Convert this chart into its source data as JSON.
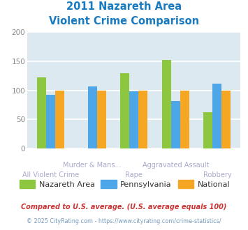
{
  "title_line1": "2011 Nazareth Area",
  "title_line2": "Violent Crime Comparison",
  "title_color": "#1a7abf",
  "categories": [
    "All Violent Crime",
    "Murder & Mans...",
    "Rape",
    "Aggravated Assault",
    "Robbery"
  ],
  "series": {
    "Nazareth Area": [
      122,
      0,
      129,
      152,
      62
    ],
    "Pennsylvania": [
      92,
      107,
      98,
      81,
      112
    ],
    "National": [
      100,
      100,
      100,
      100,
      100
    ]
  },
  "colors": {
    "Nazareth Area": "#8dc63f",
    "Pennsylvania": "#4da6e8",
    "National": "#f5a623"
  },
  "ylim": [
    0,
    200
  ],
  "yticks": [
    0,
    50,
    100,
    150,
    200
  ],
  "background_color": "#dce9f0",
  "grid_color": "#ffffff",
  "bar_width": 0.22,
  "group_positions": [
    0,
    1,
    2,
    3,
    4
  ],
  "xlabel_color": "#aaaacc",
  "xlabel_fontsize": 7.0,
  "tick_label_color": "#888888",
  "legend_labels": [
    "Nazareth Area",
    "Pennsylvania",
    "National"
  ],
  "footnote1": "Compared to U.S. average. (U.S. average equals 100)",
  "footnote2": "© 2025 CityRating.com - https://www.cityrating.com/crime-statistics/",
  "footnote1_color": "#cc3333",
  "footnote2_color": "#7799bb"
}
